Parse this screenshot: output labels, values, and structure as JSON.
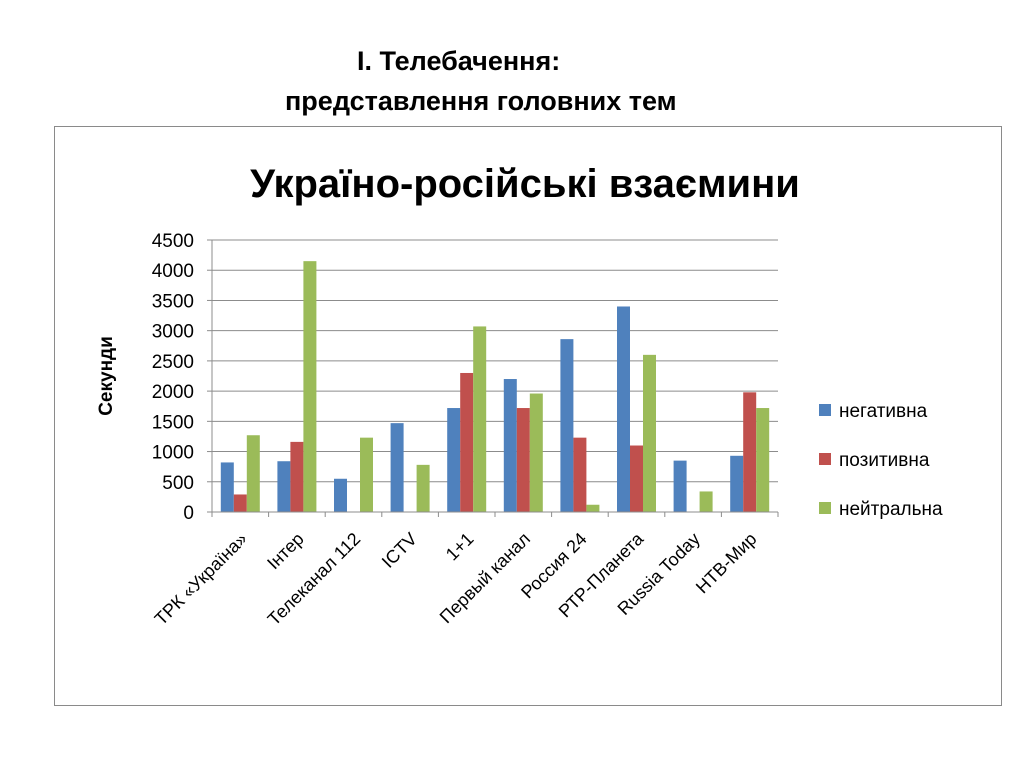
{
  "slide": {
    "title_line1": "І. Телебачення:",
    "title_line2": "представлення головних тем"
  },
  "chart_data": {
    "type": "bar",
    "title": "Україно-російські взаємини",
    "ylabel": "Секунди",
    "xlabel": "",
    "ylim": [
      0,
      4500
    ],
    "yticks": [
      0,
      500,
      1000,
      1500,
      2000,
      2500,
      3000,
      3500,
      4000,
      4500
    ],
    "grid": true,
    "legend_position": "right",
    "categories": [
      "ТРК «Україна»",
      "Інтер",
      "Телеканал 112",
      "ICTV",
      "1+1",
      "Первый канал",
      "Россия 24",
      "РТР-Планета",
      "Russia Today",
      "НТВ-Мир"
    ],
    "series": [
      {
        "name": "негативна",
        "color": "#4F81BD",
        "values": [
          820,
          840,
          550,
          1470,
          1720,
          2200,
          2860,
          3400,
          850,
          930
        ]
      },
      {
        "name": "позитивна",
        "color": "#C0504D",
        "values": [
          290,
          1160,
          0,
          0,
          2300,
          1720,
          1230,
          1100,
          0,
          1980
        ]
      },
      {
        "name": "нейтральна",
        "color": "#9BBB59",
        "values": [
          1270,
          4150,
          1230,
          780,
          3070,
          1960,
          120,
          2600,
          340,
          1720
        ]
      }
    ]
  }
}
